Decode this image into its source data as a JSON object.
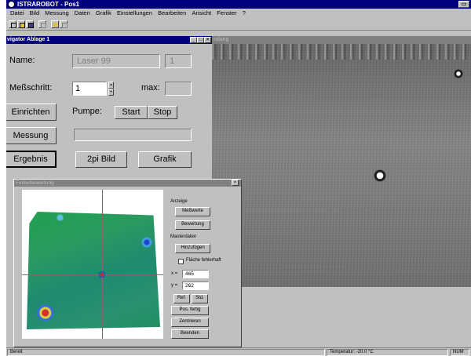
{
  "app": {
    "title": "ISTRAROBOT - Pos1"
  },
  "menu": {
    "items": [
      "Datei",
      "Bild",
      "Messung",
      "Daten",
      "Grafik",
      "Einstellungen",
      "Bearbeiten",
      "Ansicht",
      "Fenster",
      "?"
    ]
  },
  "toolbar": {
    "icons": [
      "new-file-icon",
      "open-folder-icon",
      "save-icon",
      "print-preview-icon",
      "help-icon",
      "info-icon"
    ]
  },
  "navigator": {
    "title": "vigator Ablage 1",
    "name_label": "Name:",
    "name_value": "Laser 99",
    "name_number": "1",
    "step_label": "Meßschritt:",
    "step_value": "1",
    "max_label": "max:",
    "max_value": "",
    "setup_button": "Einrichten",
    "pump_label": "Pumpe:",
    "start_button": "Start",
    "stop_button": "Stop",
    "measure_button": "Messung",
    "result_button": "Ergebnis",
    "image2pi_button": "2pi Bild",
    "graphic_button": "Grafik"
  },
  "image_window": {
    "title": "ndung"
  },
  "fault_dialog": {
    "title": "Fehlerbewertung",
    "anzeige_label": "Anzeige",
    "messwerte_button": "Meßwerte",
    "bewertung_button": "Bewertung",
    "masterdaten_label": "Masterdaten",
    "hinzufuegen_button": "Hinzufügen",
    "flaeche_label": "Fläche fehlerhaft",
    "x_label": "x =",
    "x_value": "465",
    "y_label": "y =",
    "y_value": "262",
    "ref_button": "Ref.",
    "std_button": "Std.",
    "pos_fertig_button": "Pos. fertig",
    "zentrieren_button": "Zentrieren",
    "beenden_button": "Beenden"
  },
  "status": {
    "ready": "Bereit",
    "temperature": "Temperatur: -20.0 °C",
    "num": "NUM"
  },
  "colors": {
    "title_active": "#000080",
    "title_inactive": "#808080",
    "face": "#c0c0c0"
  }
}
